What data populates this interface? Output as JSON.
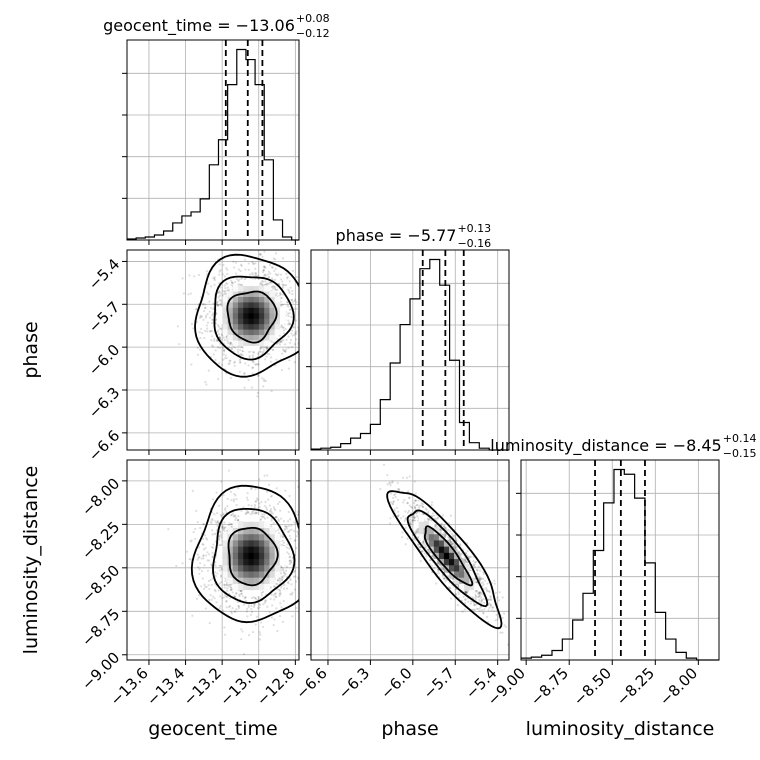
{
  "chart_data": {
    "type": "corner",
    "grid": true,
    "parameters": [
      "geocent_time",
      "phase",
      "luminosity_distance"
    ],
    "titles": [
      {
        "param": "geocent_time",
        "main": "geocent_time = −13.06",
        "sup": "+0.08",
        "sub": "−0.12"
      },
      {
        "param": "phase",
        "main": "phase = −5.77",
        "sup": "+0.13",
        "sub": "−0.16"
      },
      {
        "param": "luminosity_distance",
        "main": "luminosity_distance = −8.45",
        "sup": "+0.14",
        "sub": "−0.15"
      }
    ],
    "axis_labels": {
      "x": [
        "geocent_time",
        "phase",
        "luminosity_distance"
      ],
      "y": [
        "phase",
        "luminosity_distance"
      ]
    },
    "ranges": {
      "geocent_time": [
        -13.72,
        -12.78
      ],
      "phase": [
        -6.72,
        -5.32
      ],
      "luminosity_distance": [
        -9.03,
        -7.88
      ]
    },
    "ticks": {
      "geocent_time": {
        "values": [
          -13.6,
          -13.4,
          -13.2,
          -13.0,
          -12.8
        ],
        "labels": [
          "−13.6",
          "−13.4",
          "−13.2",
          "−13.0",
          "−12.8"
        ]
      },
      "phase": {
        "values": [
          -6.6,
          -6.3,
          -6.0,
          -5.7,
          -5.4
        ],
        "labels": [
          "−6.6",
          "−6.3",
          "−6.0",
          "−5.7",
          "−5.4"
        ]
      },
      "luminosity_distance": {
        "values": [
          -9.0,
          -8.75,
          -8.5,
          -8.25,
          -8.0
        ],
        "labels": [
          "−9.00",
          "−8.75",
          "−8.50",
          "−8.25",
          "−8.00"
        ]
      }
    },
    "quantiles": {
      "geocent_time": [
        -13.18,
        -13.06,
        -12.98
      ],
      "phase": [
        -5.93,
        -5.77,
        -5.64
      ],
      "luminosity_distance": [
        -8.6,
        -8.45,
        -8.31
      ]
    },
    "histograms": {
      "geocent_time": {
        "edges": [
          -13.72,
          -13.67,
          -13.62,
          -13.57,
          -13.52,
          -13.47,
          -13.42,
          -13.37,
          -13.32,
          -13.27,
          -13.22,
          -13.17,
          -13.12,
          -13.07,
          -13.02,
          -12.97,
          -12.92,
          -12.87,
          -12.82,
          -12.78
        ],
        "counts": [
          1,
          2,
          3,
          5,
          9,
          17,
          24,
          28,
          41,
          75,
          100,
          155,
          190,
          180,
          155,
          80,
          20,
          3,
          0
        ]
      },
      "phase": {
        "edges": [
          -6.72,
          -6.65,
          -6.58,
          -6.51,
          -6.44,
          -6.37,
          -6.3,
          -6.23,
          -6.16,
          -6.09,
          -6.02,
          -5.95,
          -5.88,
          -5.81,
          -5.74,
          -5.67,
          -5.6,
          -5.53,
          -5.46,
          -5.39,
          -5.32
        ],
        "counts": [
          1,
          2,
          3,
          7,
          13,
          18,
          28,
          55,
          95,
          137,
          165,
          198,
          208,
          180,
          98,
          30,
          8,
          2,
          0,
          0
        ]
      },
      "luminosity_distance": {
        "edges": [
          -9.03,
          -8.97,
          -8.91,
          -8.85,
          -8.79,
          -8.73,
          -8.67,
          -8.61,
          -8.55,
          -8.49,
          -8.43,
          -8.37,
          -8.31,
          -8.25,
          -8.19,
          -8.13,
          -8.07,
          -8.01,
          -7.95,
          -7.88
        ],
        "counts": [
          2,
          3,
          5,
          10,
          22,
          42,
          70,
          115,
          165,
          200,
          195,
          170,
          102,
          50,
          22,
          8,
          2,
          0,
          0
        ]
      }
    },
    "pairs": [
      {
        "x": "geocent_time",
        "y": "phase",
        "center": [
          -13.04,
          -5.78
        ],
        "std": [
          0.12,
          0.16
        ],
        "rho": 0.0,
        "levels": [
          1.1,
          1.8,
          2.6
        ]
      },
      {
        "x": "geocent_time",
        "y": "luminosity_distance",
        "center": [
          -13.04,
          -8.43
        ],
        "std": [
          0.12,
          0.15
        ],
        "rho": 0.0,
        "levels": [
          1.1,
          1.8,
          2.6
        ]
      },
      {
        "x": "phase",
        "y": "luminosity_distance",
        "center": [
          -5.76,
          -8.43
        ],
        "std": [
          0.15,
          0.15
        ],
        "rho": -0.88,
        "levels": [
          1.1,
          1.8,
          2.6
        ]
      }
    ]
  }
}
